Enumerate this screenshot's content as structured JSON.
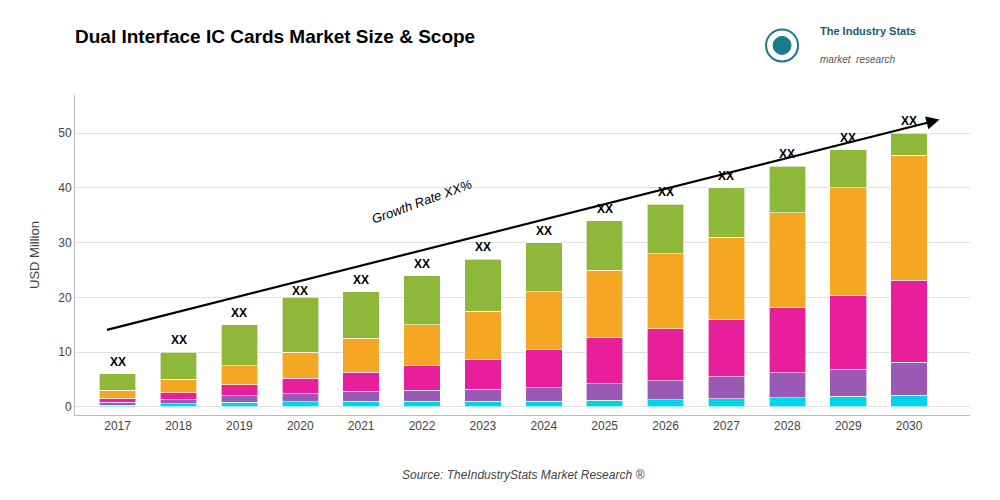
{
  "chart_data": {
    "type": "bar",
    "stacked": true,
    "title": "Dual Interface IC Cards Market Size & Scope",
    "ylabel": "USD Million",
    "x": [
      2017,
      2018,
      2019,
      2020,
      2021,
      2022,
      2023,
      2024,
      2025,
      2026,
      2027,
      2028,
      2029,
      2030
    ],
    "xlim": [
      2016.3,
      2031.0
    ],
    "xticks": [
      2017,
      2018,
      2019,
      2020,
      2021,
      2022,
      2023,
      2024,
      2025,
      2026,
      2027,
      2028,
      2029,
      2030
    ],
    "ylim": [
      -1.5,
      57
    ],
    "yticks": [
      0,
      10,
      20,
      30,
      40,
      50
    ],
    "grid": true,
    "series": [
      {
        "color": "#00d4e8",
        "values": [
          0.3,
          0.6,
          0.8,
          0.9,
          1.0,
          1.0,
          1.0,
          1.0,
          1.2,
          1.3,
          1.5,
          1.7,
          1.9,
          2.1
        ]
      },
      {
        "color": "#9b59b6",
        "values": [
          0.5,
          0.7,
          1.2,
          1.5,
          1.8,
          2.0,
          2.2,
          2.5,
          3.0,
          3.5,
          4.0,
          4.5,
          5.0,
          6.0
        ]
      },
      {
        "color": "#e91e9a",
        "values": [
          0.8,
          1.3,
          2.0,
          2.8,
          3.5,
          4.5,
          5.5,
          7.0,
          8.5,
          9.5,
          10.5,
          12.0,
          13.5,
          15.0
        ]
      },
      {
        "color": "#f5a623",
        "values": [
          1.4,
          2.4,
          3.5,
          4.8,
          6.2,
          7.5,
          8.8,
          10.5,
          12.3,
          13.7,
          15.0,
          17.3,
          19.6,
          22.9
        ]
      },
      {
        "color": "#8db83a",
        "values": [
          3.0,
          5.0,
          7.5,
          10.0,
          8.5,
          9.0,
          9.5,
          9.0,
          9.0,
          9.0,
          9.0,
          8.5,
          7.0,
          4.0
        ]
      }
    ],
    "annotations": [
      {
        "text": "XX",
        "x": 2017,
        "y": 6
      },
      {
        "text": "XX",
        "x": 2018,
        "y": 10
      },
      {
        "text": "XX",
        "x": 2019,
        "y": 15
      },
      {
        "text": "XX",
        "x": 2020,
        "y": 19
      },
      {
        "text": "XX",
        "x": 2021,
        "y": 21
      },
      {
        "text": "XX",
        "x": 2022,
        "y": 24
      },
      {
        "text": "XX",
        "x": 2023,
        "y": 27
      },
      {
        "text": "XX",
        "x": 2024,
        "y": 30
      },
      {
        "text": "XX",
        "x": 2025,
        "y": 34
      },
      {
        "text": "XX",
        "x": 2026,
        "y": 37
      },
      {
        "text": "XX",
        "x": 2027,
        "y": 40
      },
      {
        "text": "XX",
        "x": 2028,
        "y": 44
      },
      {
        "text": "XX",
        "x": 2029,
        "y": 47
      },
      {
        "text": "XX",
        "x": 2030,
        "y": 50
      },
      {
        "text": "Growth Rate XX%",
        "x": 2022.0,
        "y": 32.5,
        "arrow": {
          "from": [
            2016.8,
            14.0
          ],
          "to": [
            2030.5,
            52.5
          ]
        }
      }
    ],
    "source": "Source: TheIndustryStats Market Research ®",
    "logo": [
      "The Industry Stats",
      "market  research"
    ]
  }
}
